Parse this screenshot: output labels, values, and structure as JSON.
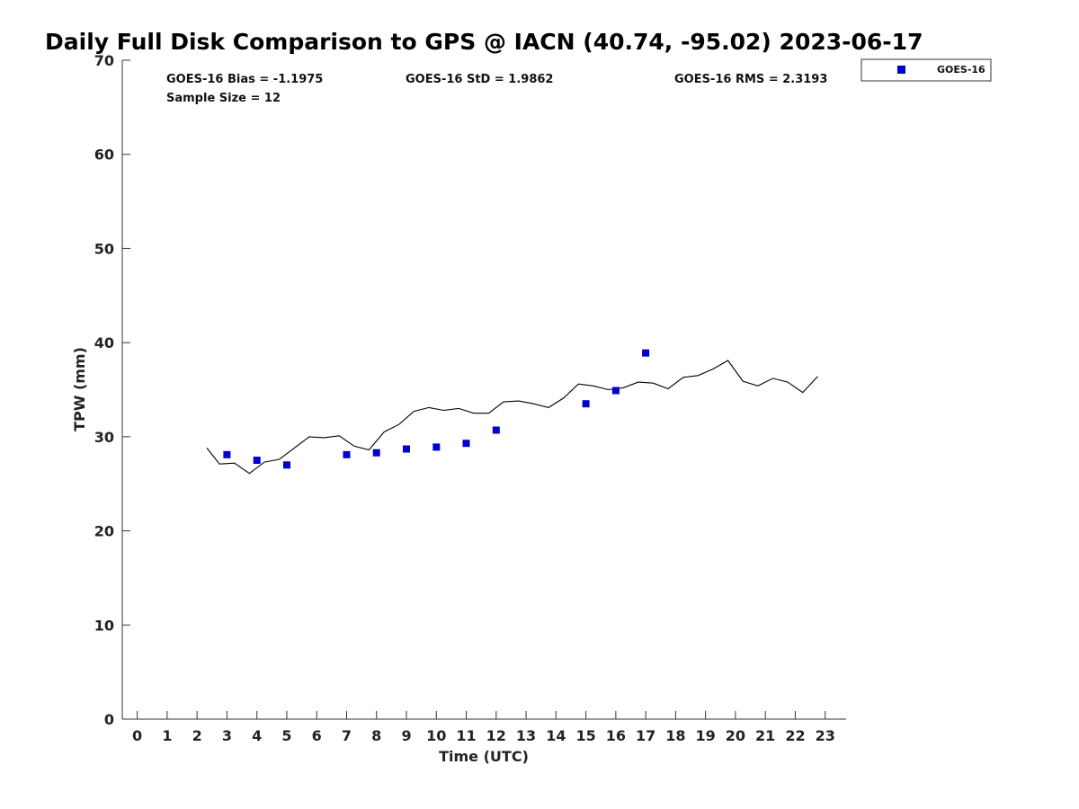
{
  "chart_data": {
    "type": "scatter",
    "title": "Daily Full Disk Comparison to GPS @ IACN (40.74, -95.02) 2023-06-17",
    "xlabel": "Time (UTC)",
    "ylabel": "TPW (mm)",
    "xlim": [
      -0.5,
      23.7
    ],
    "ylim": [
      0,
      70
    ],
    "x_ticks": [
      0,
      1,
      2,
      3,
      4,
      5,
      6,
      7,
      8,
      9,
      10,
      11,
      12,
      13,
      14,
      15,
      16,
      17,
      18,
      19,
      20,
      21,
      22,
      23
    ],
    "y_ticks": [
      0,
      10,
      20,
      30,
      40,
      50,
      60,
      70
    ],
    "grid": false,
    "legend_position": "top-right",
    "stats": {
      "bias": "GOES-16 Bias = -1.1975",
      "std": "GOES-16 StD = 1.9862",
      "rms": "GOES-16 RMS = 2.3193",
      "sample": "Sample Size = 12"
    },
    "series": [
      {
        "name": "GOES-16",
        "kind": "scatter",
        "color": "#0000cc",
        "marker": "square",
        "x": [
          3.0,
          4.0,
          5.0,
          7.0,
          8.0,
          9.0,
          10.0,
          11.0,
          12.0,
          15.0,
          16.0,
          17.0
        ],
        "y": [
          28.1,
          27.5,
          27.0,
          28.1,
          28.3,
          28.7,
          28.9,
          29.3,
          30.7,
          33.5,
          34.9,
          38.9
        ]
      },
      {
        "kind": "line",
        "color": "#000000",
        "x": [
          2.33,
          2.75,
          3.25,
          3.75,
          4.25,
          4.75,
          5.25,
          5.75,
          6.25,
          6.75,
          7.25,
          7.75,
          8.25,
          8.75,
          9.25,
          9.75,
          10.25,
          10.75,
          11.25,
          11.75,
          12.25,
          12.75,
          13.25,
          13.75,
          14.25,
          14.75,
          15.25,
          15.75,
          16.25,
          16.75,
          17.25,
          17.75,
          18.25,
          18.75,
          19.25,
          19.75,
          20.25,
          20.75,
          21.25,
          21.75,
          22.25,
          22.75
        ],
        "y": [
          28.8,
          27.1,
          27.2,
          26.1,
          27.3,
          27.6,
          28.8,
          30.0,
          29.9,
          30.1,
          29.0,
          28.6,
          30.5,
          31.3,
          32.7,
          33.1,
          32.8,
          33.0,
          32.5,
          32.5,
          33.7,
          33.8,
          33.5,
          33.1,
          34.1,
          35.6,
          35.4,
          35.0,
          35.2,
          35.8,
          35.7,
          35.1,
          36.3,
          36.5,
          37.2,
          38.1,
          35.9,
          35.4,
          36.2,
          35.8,
          34.7,
          36.4
        ]
      }
    ]
  }
}
